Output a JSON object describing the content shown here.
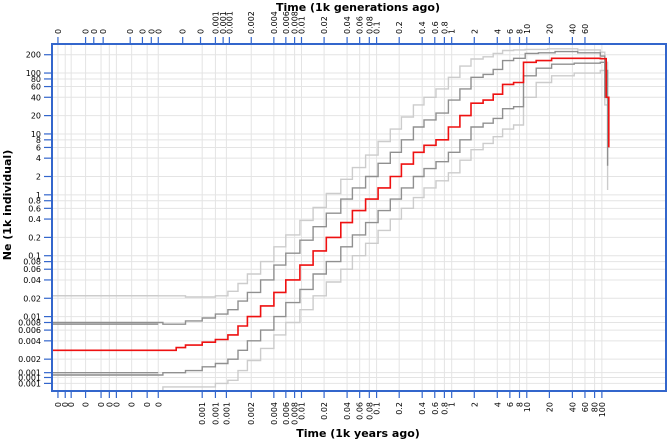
{
  "chart_data": {
    "type": "line",
    "title": "",
    "x_top_label": "Time (1k generations ago)",
    "x_bottom_label": "Time (1k years ago)",
    "ylabel": "Ne (1k individual)",
    "x_scale": "log",
    "y_scale": "log",
    "xlim": [
      1e-06,
      150
    ],
    "ylim": [
      0.0006,
      300
    ],
    "grid": true,
    "frame_color": "#3366cc",
    "y_ticks": [
      {
        "v": 200,
        "label": "200"
      },
      {
        "v": 100,
        "label": "100"
      },
      {
        "v": 80,
        "label": "80"
      },
      {
        "v": 60,
        "label": "60"
      },
      {
        "v": 40,
        "label": "40"
      },
      {
        "v": 20,
        "label": "20"
      },
      {
        "v": 10,
        "label": "10"
      },
      {
        "v": 8,
        "label": "8"
      },
      {
        "v": 6,
        "label": "6"
      },
      {
        "v": 4,
        "label": "4"
      },
      {
        "v": 2,
        "label": "2"
      },
      {
        "v": 1,
        "label": "1"
      },
      {
        "v": 0.8,
        "label": "0.8"
      },
      {
        "v": 0.6,
        "label": "0.6"
      },
      {
        "v": 0.4,
        "label": "0.4"
      },
      {
        "v": 0.2,
        "label": "0.2"
      },
      {
        "v": 0.1,
        "label": "0.1"
      },
      {
        "v": 0.08,
        "label": "0.08"
      },
      {
        "v": 0.06,
        "label": "0.06"
      },
      {
        "v": 0.04,
        "label": "0.04"
      },
      {
        "v": 0.02,
        "label": "0.02"
      },
      {
        "v": 0.01,
        "label": "0.01"
      },
      {
        "v": 0.008,
        "label": "0.008"
      },
      {
        "v": 0.006,
        "label": "0.006"
      },
      {
        "v": 0.004,
        "label": "0.004"
      },
      {
        "v": 0.002,
        "label": "0.002"
      },
      {
        "v": 0.0012,
        "label": "0.001"
      },
      {
        "v": 0.001,
        "label": "0.001"
      },
      {
        "v": 0.0008,
        "label": "0.001"
      }
    ],
    "x_bottom_ticks": [
      {
        "v": 1.2e-06,
        "label": "0"
      },
      {
        "v": 1.5e-06,
        "label": "0"
      },
      {
        "v": 1.8e-06,
        "label": "0"
      },
      {
        "v": 2.8e-06,
        "label": "0"
      },
      {
        "v": 4.5e-06,
        "label": "0"
      },
      {
        "v": 5.8e-06,
        "label": "0"
      },
      {
        "v": 7.2e-06,
        "label": "0"
      },
      {
        "v": 1.15e-05,
        "label": "0"
      },
      {
        "v": 1.85e-05,
        "label": "0"
      },
      {
        "v": 2.6e-05,
        "label": "0"
      },
      {
        "v": 0.0001,
        "label": "0.001"
      },
      {
        "v": 0.00015,
        "label": "0.001"
      },
      {
        "v": 0.00021,
        "label": "0.001"
      },
      {
        "v": 0.00045,
        "label": "0.002"
      },
      {
        "v": 0.0009,
        "label": "0.004"
      },
      {
        "v": 0.0013,
        "label": "0.006"
      },
      {
        "v": 0.0017,
        "label": "0.008"
      },
      {
        "v": 0.0021,
        "label": "0.01"
      },
      {
        "v": 0.0042,
        "label": "0.02"
      },
      {
        "v": 0.0085,
        "label": "0.04"
      },
      {
        "v": 0.0125,
        "label": "0.06"
      },
      {
        "v": 0.0168,
        "label": "0.08"
      },
      {
        "v": 0.021,
        "label": "0.1"
      },
      {
        "v": 0.042,
        "label": "0.2"
      },
      {
        "v": 0.085,
        "label": "0.4"
      },
      {
        "v": 0.125,
        "label": "0.6"
      },
      {
        "v": 0.168,
        "label": "0.8"
      },
      {
        "v": 0.21,
        "label": "1"
      },
      {
        "v": 0.42,
        "label": "2"
      },
      {
        "v": 0.85,
        "label": "4"
      },
      {
        "v": 1.25,
        "label": "6"
      },
      {
        "v": 1.68,
        "label": "8"
      },
      {
        "v": 2.1,
        "label": "10"
      },
      {
        "v": 4.2,
        "label": "20"
      },
      {
        "v": 8.5,
        "label": "40"
      },
      {
        "v": 12.5,
        "label": "60"
      },
      {
        "v": 16.8,
        "label": "80"
      },
      {
        "v": 21,
        "label": "100"
      }
    ],
    "x_top_ticks": [
      {
        "v": 1.2e-06,
        "label": "0"
      },
      {
        "v": 2.8e-06,
        "label": "0"
      },
      {
        "v": 3.6e-06,
        "label": "0"
      },
      {
        "v": 4.8e-06,
        "label": "0"
      },
      {
        "v": 1.1e-05,
        "label": "0"
      },
      {
        "v": 1.6e-05,
        "label": "0"
      },
      {
        "v": 2.1e-05,
        "label": "0"
      },
      {
        "v": 2.6e-05,
        "label": "0"
      },
      {
        "v": 5.5e-05,
        "label": "0"
      },
      {
        "v": 9.5e-05,
        "label": "0"
      },
      {
        "v": 0.00015,
        "label": "0.001"
      },
      {
        "v": 0.00019,
        "label": "0.001"
      },
      {
        "v": 0.00023,
        "label": "0.001"
      },
      {
        "v": 0.00045,
        "label": "0.002"
      },
      {
        "v": 0.0009,
        "label": "0.004"
      },
      {
        "v": 0.0013,
        "label": "0.006"
      },
      {
        "v": 0.0017,
        "label": "0.008"
      },
      {
        "v": 0.0021,
        "label": "0.01"
      },
      {
        "v": 0.0042,
        "label": "0.02"
      },
      {
        "v": 0.0085,
        "label": "0.04"
      },
      {
        "v": 0.0125,
        "label": "0.06"
      },
      {
        "v": 0.0168,
        "label": "0.08"
      },
      {
        "v": 0.021,
        "label": "0.1"
      },
      {
        "v": 0.042,
        "label": "0.2"
      },
      {
        "v": 0.085,
        "label": "0.4"
      },
      {
        "v": 0.125,
        "label": "0.6"
      },
      {
        "v": 0.168,
        "label": "0.8"
      },
      {
        "v": 0.21,
        "label": "1"
      },
      {
        "v": 0.42,
        "label": "2"
      },
      {
        "v": 0.85,
        "label": "4"
      },
      {
        "v": 1.25,
        "label": "6"
      },
      {
        "v": 1.68,
        "label": "8"
      },
      {
        "v": 2.1,
        "label": "10"
      },
      {
        "v": 4.2,
        "label": "20"
      },
      {
        "v": 8.5,
        "label": "40"
      },
      {
        "v": 12.5,
        "label": "60"
      }
    ],
    "series": [
      {
        "role": "median",
        "color": "#ee1111",
        "points": [
          [
            1e-06,
            0.0028
          ],
          [
            3e-05,
            0.0028
          ],
          [
            4.5e-05,
            0.0031
          ],
          [
            6e-05,
            0.0034
          ],
          [
            0.0001,
            0.0038
          ],
          [
            0.00015,
            0.0042
          ],
          [
            0.00022,
            0.005
          ],
          [
            0.0003,
            0.007
          ],
          [
            0.0004,
            0.01
          ],
          [
            0.0006,
            0.015
          ],
          [
            0.0009,
            0.025
          ],
          [
            0.0013,
            0.04
          ],
          [
            0.002,
            0.07
          ],
          [
            0.003,
            0.12
          ],
          [
            0.0045,
            0.2
          ],
          [
            0.007,
            0.35
          ],
          [
            0.01,
            0.55
          ],
          [
            0.015,
            0.85
          ],
          [
            0.022,
            1.3
          ],
          [
            0.032,
            2
          ],
          [
            0.045,
            3.2
          ],
          [
            0.065,
            5
          ],
          [
            0.09,
            6.5
          ],
          [
            0.13,
            8
          ],
          [
            0.19,
            13
          ],
          [
            0.27,
            20
          ],
          [
            0.38,
            32
          ],
          [
            0.55,
            36
          ],
          [
            0.75,
            45
          ],
          [
            1.0,
            65
          ],
          [
            1.4,
            70
          ],
          [
            1.9,
            150
          ],
          [
            2.8,
            160
          ],
          [
            4.5,
            175
          ],
          [
            9,
            175
          ],
          [
            20,
            172
          ],
          [
            24,
            40
          ],
          [
            26,
            6
          ]
        ]
      },
      {
        "role": "upper-inner",
        "color": "#909090",
        "points": [
          [
            1e-06,
            0.008
          ],
          [
            3e-05,
            0.0075
          ],
          [
            6e-05,
            0.0085
          ],
          [
            0.0001,
            0.0095
          ],
          [
            0.00015,
            0.011
          ],
          [
            0.00022,
            0.013
          ],
          [
            0.0003,
            0.018
          ],
          [
            0.0004,
            0.025
          ],
          [
            0.0006,
            0.04
          ],
          [
            0.0009,
            0.07
          ],
          [
            0.0013,
            0.11
          ],
          [
            0.002,
            0.18
          ],
          [
            0.003,
            0.3
          ],
          [
            0.0045,
            0.5
          ],
          [
            0.007,
            0.85
          ],
          [
            0.01,
            1.3
          ],
          [
            0.015,
            2
          ],
          [
            0.022,
            3.3
          ],
          [
            0.032,
            5
          ],
          [
            0.045,
            8
          ],
          [
            0.065,
            13
          ],
          [
            0.09,
            17
          ],
          [
            0.13,
            22
          ],
          [
            0.19,
            36
          ],
          [
            0.27,
            55
          ],
          [
            0.38,
            85
          ],
          [
            0.55,
            95
          ],
          [
            0.75,
            115
          ],
          [
            1.0,
            160
          ],
          [
            1.4,
            175
          ],
          [
            2.0,
            210
          ],
          [
            3,
            215
          ],
          [
            5,
            225
          ],
          [
            10,
            215
          ],
          [
            20,
            190
          ],
          [
            23,
            110
          ],
          [
            25,
            35
          ]
        ]
      },
      {
        "role": "lower-inner",
        "color": "#909090",
        "points": [
          [
            1e-06,
            0.0011
          ],
          [
            3e-05,
            0.0012
          ],
          [
            6e-05,
            0.0013
          ],
          [
            0.0001,
            0.0015
          ],
          [
            0.00015,
            0.0017
          ],
          [
            0.00022,
            0.002
          ],
          [
            0.0003,
            0.0028
          ],
          [
            0.0004,
            0.004
          ],
          [
            0.0006,
            0.006
          ],
          [
            0.0009,
            0.01
          ],
          [
            0.0013,
            0.017
          ],
          [
            0.002,
            0.028
          ],
          [
            0.003,
            0.05
          ],
          [
            0.0045,
            0.08
          ],
          [
            0.007,
            0.14
          ],
          [
            0.01,
            0.22
          ],
          [
            0.015,
            0.35
          ],
          [
            0.022,
            0.55
          ],
          [
            0.032,
            0.85
          ],
          [
            0.045,
            1.3
          ],
          [
            0.065,
            2
          ],
          [
            0.09,
            2.7
          ],
          [
            0.13,
            3.5
          ],
          [
            0.19,
            5
          ],
          [
            0.27,
            8
          ],
          [
            0.38,
            13
          ],
          [
            0.55,
            15
          ],
          [
            0.75,
            18
          ],
          [
            1.0,
            26
          ],
          [
            1.4,
            28
          ],
          [
            1.9,
            90
          ],
          [
            2.8,
            120
          ],
          [
            4.5,
            140
          ],
          [
            9,
            145
          ],
          [
            20,
            150
          ],
          [
            23,
            40
          ],
          [
            25,
            3
          ]
        ]
      },
      {
        "role": "upper-outer",
        "color": "#cccccc",
        "points": [
          [
            1e-06,
            0.022
          ],
          [
            3e-05,
            0.022
          ],
          [
            6e-05,
            0.021
          ],
          [
            0.0001,
            0.021
          ],
          [
            0.00015,
            0.022
          ],
          [
            0.00022,
            0.026
          ],
          [
            0.0003,
            0.035
          ],
          [
            0.0004,
            0.05
          ],
          [
            0.0006,
            0.08
          ],
          [
            0.0009,
            0.14
          ],
          [
            0.0013,
            0.22
          ],
          [
            0.002,
            0.38
          ],
          [
            0.003,
            0.62
          ],
          [
            0.0045,
            1.05
          ],
          [
            0.007,
            1.8
          ],
          [
            0.01,
            2.8
          ],
          [
            0.015,
            4.5
          ],
          [
            0.022,
            7.5
          ],
          [
            0.032,
            12
          ],
          [
            0.045,
            19
          ],
          [
            0.065,
            30
          ],
          [
            0.09,
            40
          ],
          [
            0.13,
            55
          ],
          [
            0.19,
            85
          ],
          [
            0.27,
            130
          ],
          [
            0.38,
            170
          ],
          [
            0.55,
            185
          ],
          [
            0.75,
            210
          ],
          [
            1.0,
            235
          ],
          [
            1.4,
            240
          ],
          [
            2,
            245
          ],
          [
            4,
            250
          ],
          [
            10,
            240
          ],
          [
            20,
            220
          ],
          [
            23,
            150
          ],
          [
            25,
            60
          ]
        ]
      },
      {
        "role": "lower-outer",
        "color": "#cccccc",
        "points": [
          [
            2e-06,
            0.0006
          ],
          [
            3e-05,
            0.0007
          ],
          [
            6e-05,
            0.0007
          ],
          [
            0.0001,
            0.0007
          ],
          [
            0.00015,
            0.0008
          ],
          [
            0.00022,
            0.0009
          ],
          [
            0.0003,
            0.0013
          ],
          [
            0.0004,
            0.0019
          ],
          [
            0.0006,
            0.003
          ],
          [
            0.0009,
            0.005
          ],
          [
            0.0013,
            0.008
          ],
          [
            0.002,
            0.013
          ],
          [
            0.003,
            0.022
          ],
          [
            0.0045,
            0.037
          ],
          [
            0.007,
            0.06
          ],
          [
            0.01,
            0.1
          ],
          [
            0.015,
            0.16
          ],
          [
            0.022,
            0.26
          ],
          [
            0.032,
            0.4
          ],
          [
            0.045,
            0.6
          ],
          [
            0.065,
            0.9
          ],
          [
            0.09,
            1.3
          ],
          [
            0.13,
            1.7
          ],
          [
            0.19,
            2.3
          ],
          [
            0.27,
            3.7
          ],
          [
            0.38,
            5.5
          ],
          [
            0.55,
            7
          ],
          [
            0.75,
            9
          ],
          [
            1.0,
            12
          ],
          [
            1.4,
            14
          ],
          [
            1.9,
            40
          ],
          [
            2.8,
            70
          ],
          [
            4.5,
            90
          ],
          [
            9,
            100
          ],
          [
            20,
            110
          ],
          [
            23,
            30
          ],
          [
            25,
            1.2
          ]
        ]
      }
    ],
    "flat_stubs": [
      {
        "color": "#cccccc",
        "y": 0.022,
        "x": [
          1e-06,
          2.6e-05
        ]
      },
      {
        "color": "#909090",
        "y": 0.0075,
        "x": [
          1e-06,
          2.6e-05
        ]
      },
      {
        "color": "#ee1111",
        "y": 0.0028,
        "x": [
          1e-06,
          2.6e-05
        ]
      },
      {
        "color": "#909090",
        "y": 0.0012,
        "x": [
          1e-06,
          2.6e-05
        ]
      },
      {
        "color": "#cccccc",
        "y": 0.0011,
        "x": [
          1e-06,
          2.6e-05
        ]
      }
    ]
  }
}
